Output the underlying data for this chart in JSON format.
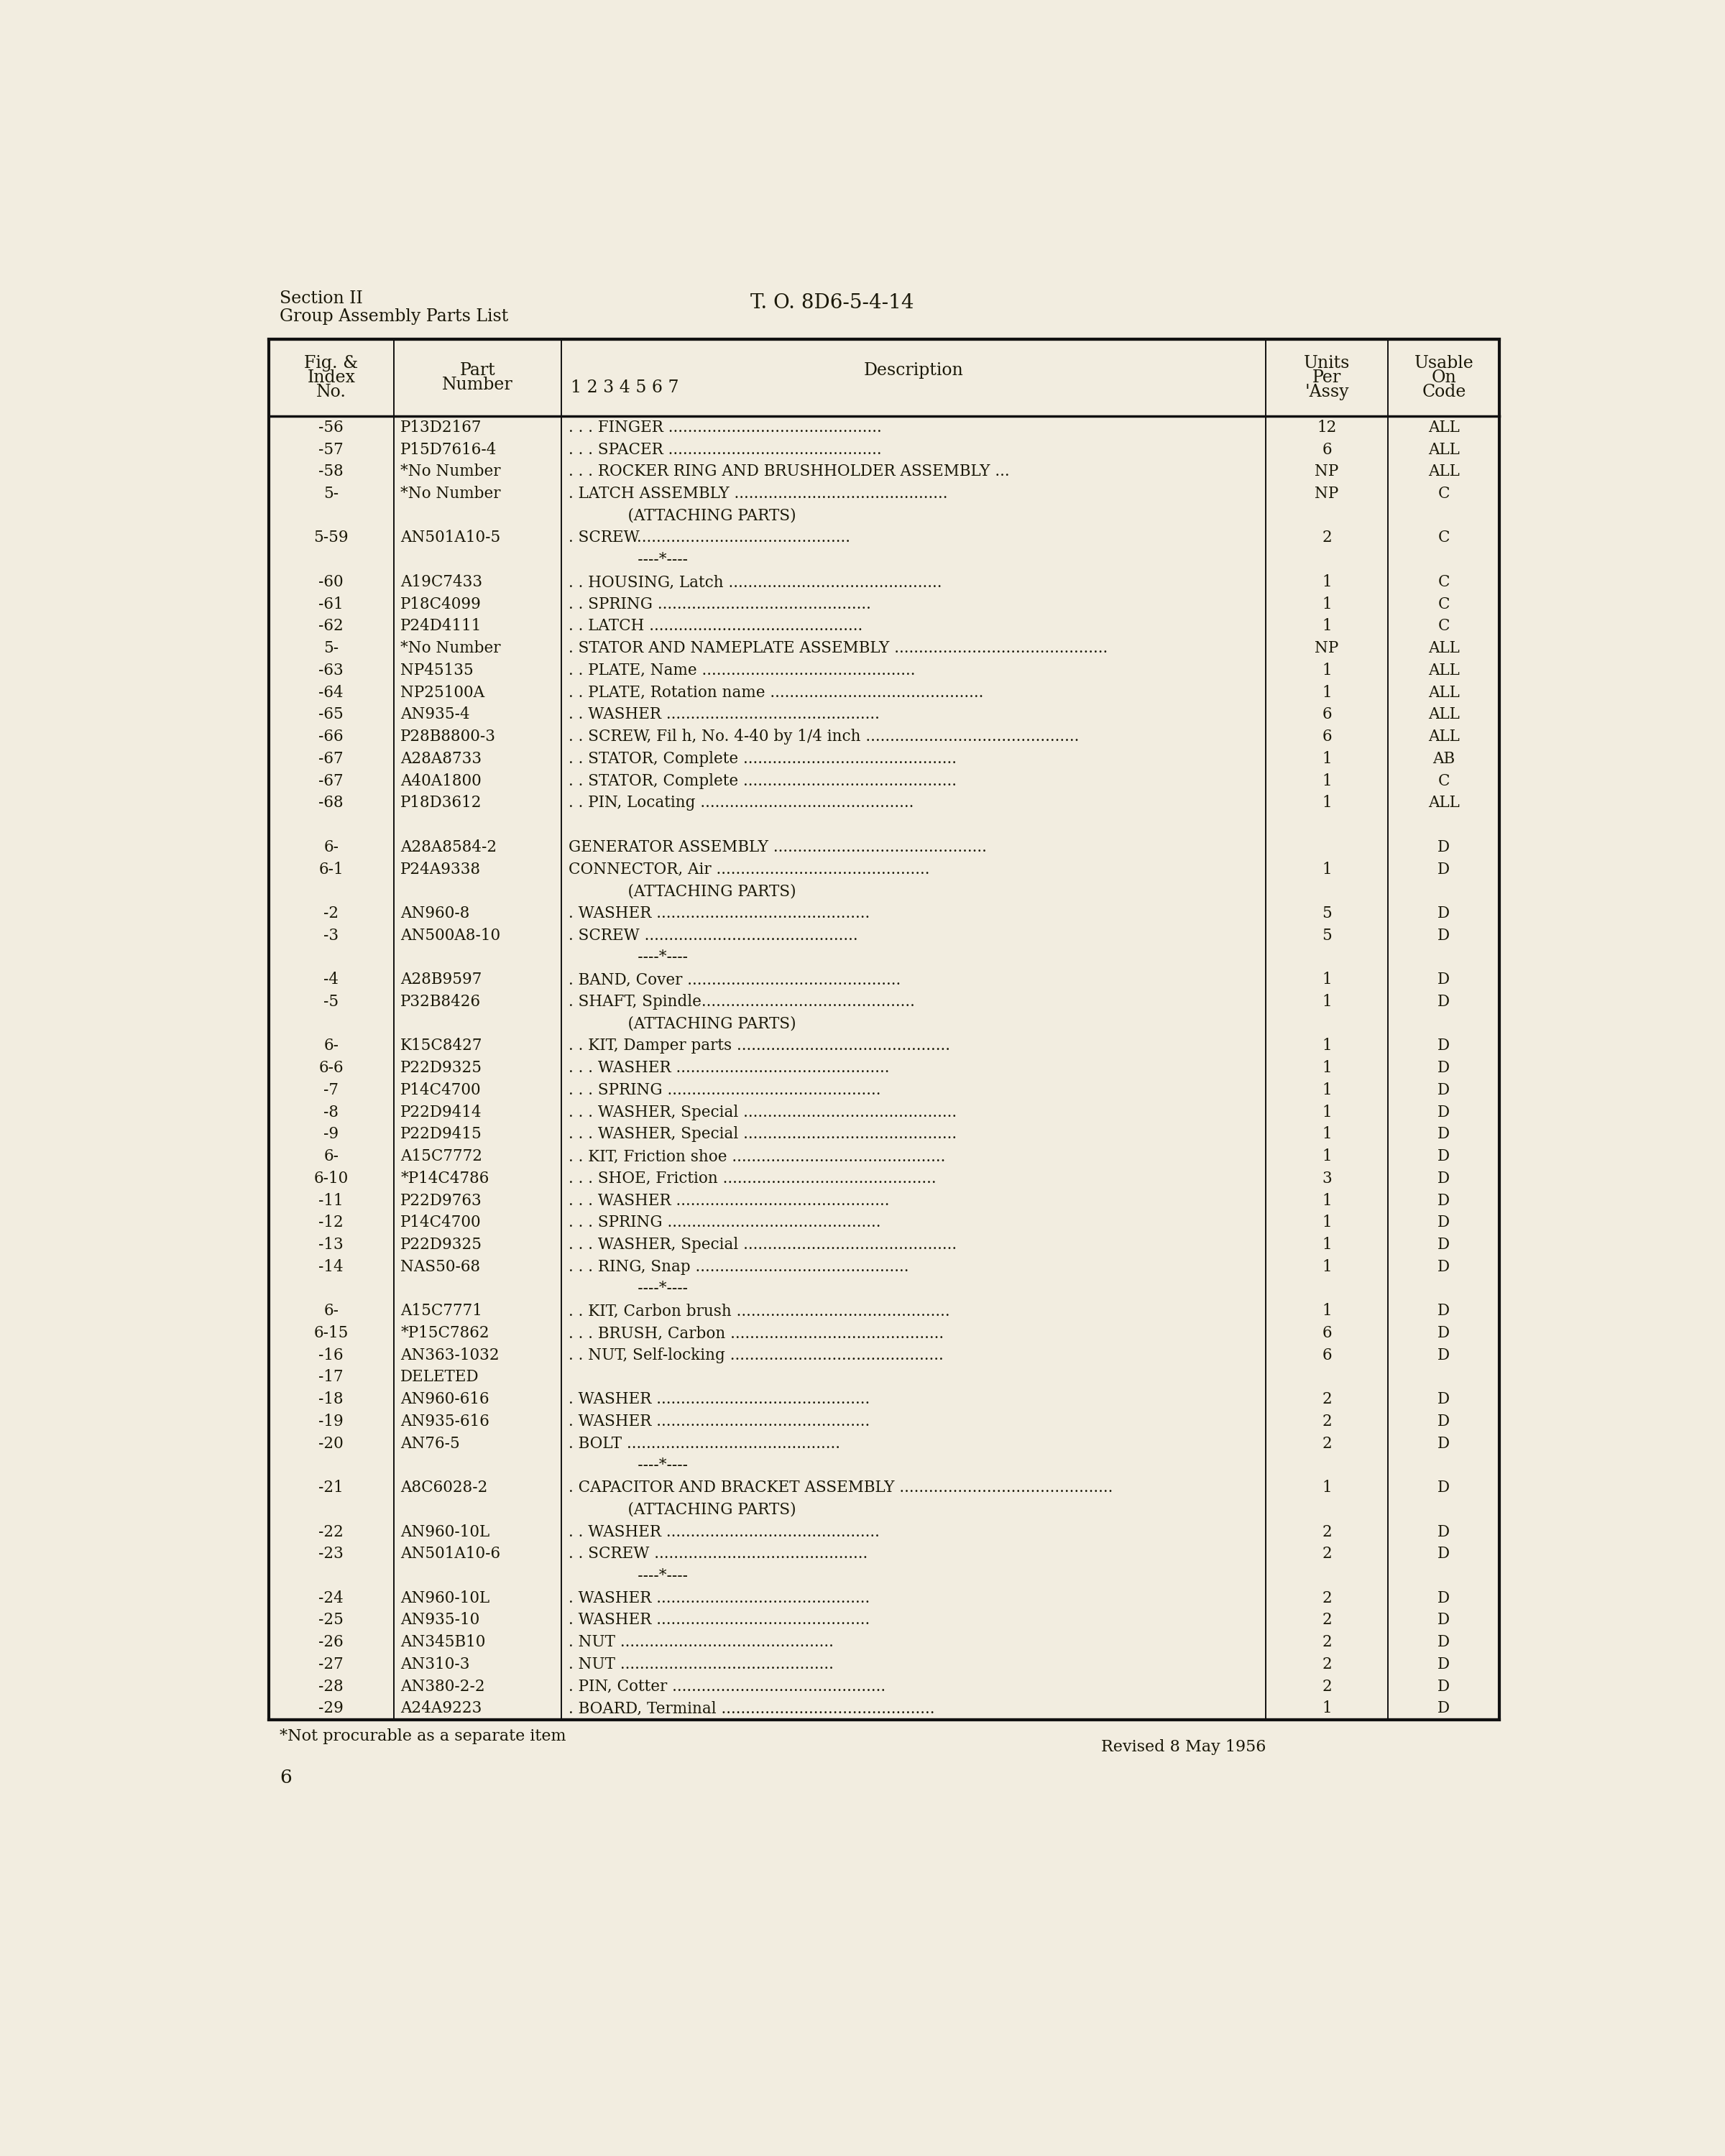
{
  "page_bg": "#f2ede0",
  "header_left_line1": "Section II",
  "header_left_line2": "Group Assembly Parts List",
  "header_center": "T. O. 8D6-5-4-14",
  "rows": [
    {
      "fig": "-56",
      "part": "P13D2167",
      "desc": ". . . FINGER ............................................",
      "units": "12",
      "code": "ALL"
    },
    {
      "fig": "-57",
      "part": "P15D7616-4",
      "desc": ". . . SPACER ............................................",
      "units": "6",
      "code": "ALL"
    },
    {
      "fig": "-58",
      "part": "*No Number",
      "desc": ". . . ROCKER RING AND BRUSHHOLDER ASSEMBLY ...",
      "units": "NP",
      "code": "ALL"
    },
    {
      "fig": "5-",
      "part": "*No Number",
      "desc": ". LATCH ASSEMBLY ............................................",
      "units": "NP",
      "code": "C"
    },
    {
      "fig": "",
      "part": "",
      "desc": "            (ATTACHING PARTS)",
      "units": "",
      "code": ""
    },
    {
      "fig": "5-59",
      "part": "AN501A10-5",
      "desc": ". SCREW............................................",
      "units": "2",
      "code": "C"
    },
    {
      "fig": "",
      "part": "",
      "desc": "              ----*----",
      "units": "",
      "code": ""
    },
    {
      "fig": "-60",
      "part": "A19C7433",
      "desc": ". . HOUSING, Latch ............................................",
      "units": "1",
      "code": "C"
    },
    {
      "fig": "-61",
      "part": "P18C4099",
      "desc": ". . SPRING ............................................",
      "units": "1",
      "code": "C"
    },
    {
      "fig": "-62",
      "part": "P24D4111",
      "desc": ". . LATCH ............................................",
      "units": "1",
      "code": "C"
    },
    {
      "fig": "5-",
      "part": "*No Number",
      "desc": ". STATOR AND NAMEPLATE ASSEMBLY ............................................",
      "units": "NP",
      "code": "ALL"
    },
    {
      "fig": "-63",
      "part": "NP45135",
      "desc": ". . PLATE, Name ............................................",
      "units": "1",
      "code": "ALL"
    },
    {
      "fig": "-64",
      "part": "NP25100A",
      "desc": ". . PLATE, Rotation name ............................................",
      "units": "1",
      "code": "ALL"
    },
    {
      "fig": "-65",
      "part": "AN935-4",
      "desc": ". . WASHER ............................................",
      "units": "6",
      "code": "ALL"
    },
    {
      "fig": "-66",
      "part": "P28B8800-3",
      "desc": ". . SCREW, Fil h, No. 4-40 by 1/4 inch ............................................",
      "units": "6",
      "code": "ALL"
    },
    {
      "fig": "-67",
      "part": "A28A8733",
      "desc": ". . STATOR, Complete ............................................",
      "units": "1",
      "code": "AB"
    },
    {
      "fig": "-67",
      "part": "A40A1800",
      "desc": ". . STATOR, Complete ............................................",
      "units": "1",
      "code": "C"
    },
    {
      "fig": "-68",
      "part": "P18D3612",
      "desc": ". . PIN, Locating ............................................",
      "units": "1",
      "code": "ALL"
    },
    {
      "fig": "",
      "part": "",
      "desc": "",
      "units": "",
      "code": ""
    },
    {
      "fig": "6-",
      "part": "A28A8584-2",
      "desc": "GENERATOR ASSEMBLY ............................................",
      "units": "",
      "code": "D"
    },
    {
      "fig": "6-1",
      "part": "P24A9338",
      "desc": "CONNECTOR, Air ............................................",
      "units": "1",
      "code": "D"
    },
    {
      "fig": "",
      "part": "",
      "desc": "            (ATTACHING PARTS)",
      "units": "",
      "code": ""
    },
    {
      "fig": "-2",
      "part": "AN960-8",
      "desc": ". WASHER ............................................",
      "units": "5",
      "code": "D"
    },
    {
      "fig": "-3",
      "part": "AN500A8-10",
      "desc": ". SCREW ............................................",
      "units": "5",
      "code": "D"
    },
    {
      "fig": "",
      "part": "",
      "desc": "              ----*----",
      "units": "",
      "code": ""
    },
    {
      "fig": "-4",
      "part": "A28B9597",
      "desc": ". BAND, Cover ............................................",
      "units": "1",
      "code": "D"
    },
    {
      "fig": "-5",
      "part": "P32B8426",
      "desc": ". SHAFT, Spindle............................................",
      "units": "1",
      "code": "D"
    },
    {
      "fig": "",
      "part": "",
      "desc": "            (ATTACHING PARTS)",
      "units": "",
      "code": ""
    },
    {
      "fig": "6-",
      "part": "K15C8427",
      "desc": ". . KIT, Damper parts ............................................",
      "units": "1",
      "code": "D"
    },
    {
      "fig": "6-6",
      "part": "P22D9325",
      "desc": ". . . WASHER ............................................",
      "units": "1",
      "code": "D"
    },
    {
      "fig": "-7",
      "part": "P14C4700",
      "desc": ". . . SPRING ............................................",
      "units": "1",
      "code": "D"
    },
    {
      "fig": "-8",
      "part": "P22D9414",
      "desc": ". . . WASHER, Special ............................................",
      "units": "1",
      "code": "D"
    },
    {
      "fig": "-9",
      "part": "P22D9415",
      "desc": ". . . WASHER, Special ............................................",
      "units": "1",
      "code": "D"
    },
    {
      "fig": "6-",
      "part": "A15C7772",
      "desc": ". . KIT, Friction shoe ............................................",
      "units": "1",
      "code": "D"
    },
    {
      "fig": "6-10",
      "part": "*P14C4786",
      "desc": ". . . SHOE, Friction ............................................",
      "units": "3",
      "code": "D"
    },
    {
      "fig": "-11",
      "part": "P22D9763",
      "desc": ". . . WASHER ............................................",
      "units": "1",
      "code": "D"
    },
    {
      "fig": "-12",
      "part": "P14C4700",
      "desc": ". . . SPRING ............................................",
      "units": "1",
      "code": "D"
    },
    {
      "fig": "-13",
      "part": "P22D9325",
      "desc": ". . . WASHER, Special ............................................",
      "units": "1",
      "code": "D"
    },
    {
      "fig": "-14",
      "part": "NAS50-68",
      "desc": ". . . RING, Snap ............................................",
      "units": "1",
      "code": "D"
    },
    {
      "fig": "",
      "part": "",
      "desc": "              ----*----",
      "units": "",
      "code": ""
    },
    {
      "fig": "6-",
      "part": "A15C7771",
      "desc": ". . KIT, Carbon brush ............................................",
      "units": "1",
      "code": "D"
    },
    {
      "fig": "6-15",
      "part": "*P15C7862",
      "desc": ". . . BRUSH, Carbon ............................................",
      "units": "6",
      "code": "D"
    },
    {
      "fig": "-16",
      "part": "AN363-1032",
      "desc": ". . NUT, Self-locking ............................................",
      "units": "6",
      "code": "D"
    },
    {
      "fig": "-17",
      "part": "DELETED",
      "desc": "",
      "units": "",
      "code": ""
    },
    {
      "fig": "-18",
      "part": "AN960-616",
      "desc": ". WASHER ............................................",
      "units": "2",
      "code": "D"
    },
    {
      "fig": "-19",
      "part": "AN935-616",
      "desc": ". WASHER ............................................",
      "units": "2",
      "code": "D"
    },
    {
      "fig": "-20",
      "part": "AN76-5",
      "desc": ". BOLT ............................................",
      "units": "2",
      "code": "D"
    },
    {
      "fig": "",
      "part": "",
      "desc": "              ----*----",
      "units": "",
      "code": ""
    },
    {
      "fig": "-21",
      "part": "A8C6028-2",
      "desc": ". CAPACITOR AND BRACKET ASSEMBLY ............................................",
      "units": "1",
      "code": "D"
    },
    {
      "fig": "",
      "part": "",
      "desc": "            (ATTACHING PARTS)",
      "units": "",
      "code": ""
    },
    {
      "fig": "-22",
      "part": "AN960-10L",
      "desc": ". . WASHER ............................................",
      "units": "2",
      "code": "D"
    },
    {
      "fig": "-23",
      "part": "AN501A10-6",
      "desc": ". . SCREW ............................................",
      "units": "2",
      "code": "D"
    },
    {
      "fig": "",
      "part": "",
      "desc": "              ----*----",
      "units": "",
      "code": ""
    },
    {
      "fig": "-24",
      "part": "AN960-10L",
      "desc": ". WASHER ............................................",
      "units": "2",
      "code": "D"
    },
    {
      "fig": "-25",
      "part": "AN935-10",
      "desc": ". WASHER ............................................",
      "units": "2",
      "code": "D"
    },
    {
      "fig": "-26",
      "part": "AN345B10",
      "desc": ". NUT ............................................",
      "units": "2",
      "code": "D"
    },
    {
      "fig": "-27",
      "part": "AN310-3",
      "desc": ". NUT ............................................",
      "units": "2",
      "code": "D"
    },
    {
      "fig": "-28",
      "part": "AN380-2-2",
      "desc": ". PIN, Cotter ............................................",
      "units": "2",
      "code": "D"
    },
    {
      "fig": "-29",
      "part": "A24A9223",
      "desc": ". BOARD, Terminal ............................................",
      "units": "1",
      "code": "D"
    }
  ],
  "footnote": "*Not procurable as a separate item",
  "revised": "Revised 8 May 1956",
  "page_number": "6",
  "text_color": "#1a1808",
  "line_color": "#111111"
}
